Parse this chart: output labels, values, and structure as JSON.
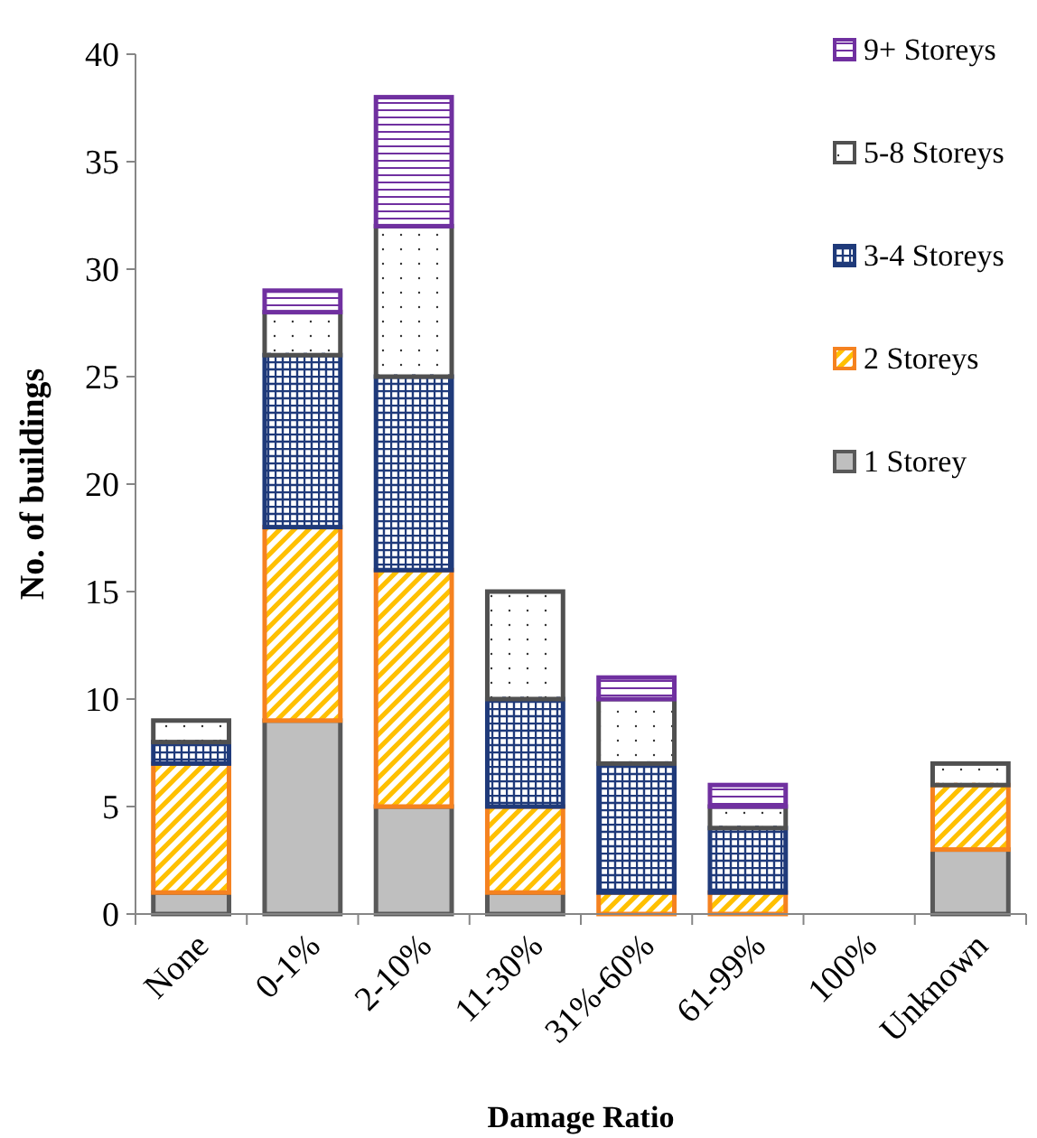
{
  "chart_data": {
    "type": "bar",
    "stacked": true,
    "xlabel": "Damage Ratio",
    "ylabel": "No. of buildings",
    "categories": [
      "None",
      "0-1%",
      "2-10%",
      "11-30%",
      "31%-60%",
      "61-99%",
      "100%",
      "Unknown"
    ],
    "series": [
      {
        "name": "1 Storey",
        "color": "#595959",
        "values": [
          1,
          9,
          5,
          1,
          0,
          0,
          0,
          3
        ]
      },
      {
        "name": "2 Storeys",
        "color": "#f58220",
        "values": [
          6,
          9,
          11,
          4,
          1,
          1,
          0,
          3
        ]
      },
      {
        "name": "3-4 Storeys",
        "color": "#1f3a7a",
        "values": [
          1,
          8,
          9,
          5,
          6,
          3,
          0,
          0
        ]
      },
      {
        "name": "5-8 Storeys",
        "color": "#505050",
        "values": [
          1,
          2,
          7,
          5,
          3,
          1,
          0,
          1
        ]
      },
      {
        "name": "9+ Storeys",
        "color": "#7030a0",
        "values": [
          0,
          1,
          6,
          0,
          1,
          1,
          0,
          0
        ]
      }
    ],
    "ylim": [
      0,
      40
    ],
    "yticks": [
      0,
      5,
      10,
      15,
      20,
      25,
      30,
      35,
      40
    ],
    "legend": "top right"
  }
}
